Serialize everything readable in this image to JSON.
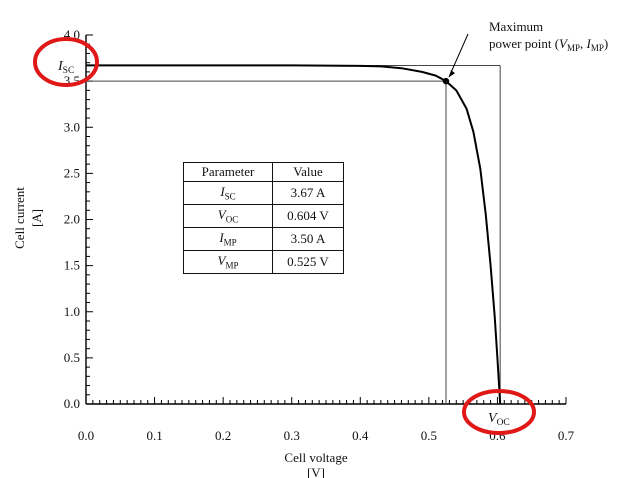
{
  "chart_data": {
    "type": "line",
    "xlabel": "Cell voltage",
    "xlabel_unit": "[V]",
    "ylabel": "Cell current",
    "ylabel_unit": "[A]",
    "xlim": [
      0.0,
      0.7
    ],
    "ylim": [
      0.0,
      4.0
    ],
    "x_ticks": [
      "0.0",
      "0.1",
      "0.2",
      "0.3",
      "0.4",
      "0.5",
      "0.6",
      "0.7"
    ],
    "y_ticks": [
      "0.0",
      "0.5",
      "1.0",
      "1.5",
      "2.0",
      "2.5",
      "3.0",
      "3.5",
      "4.0"
    ],
    "grid": false,
    "series": [
      {
        "x": [
          0.0,
          0.3,
          0.4,
          0.43,
          0.46,
          0.49,
          0.51,
          0.525,
          0.54,
          0.555,
          0.565,
          0.575,
          0.583,
          0.59,
          0.596,
          0.6,
          0.604
        ],
        "y": [
          3.67,
          3.67,
          3.665,
          3.66,
          3.64,
          3.6,
          3.56,
          3.5,
          3.4,
          3.2,
          2.95,
          2.55,
          2.05,
          1.5,
          0.95,
          0.5,
          0.0
        ]
      }
    ],
    "y_marker_label": {
      "base": "I",
      "sub": "SC"
    },
    "x_marker_label": {
      "base": "V",
      "sub": "OC"
    },
    "annotation": {
      "line1": "Maximum",
      "line2_pre": "power point (",
      "v_base": "V",
      "v_sub": "MP",
      "sep": ", ",
      "i_base": "I",
      "i_sub": "MP",
      "line2_post": ")"
    },
    "values": {
      "isc": 3.67,
      "voc": 0.604,
      "imp": 3.5,
      "vmp": 0.525
    },
    "circle_color": "#e01818",
    "line_color": "#000000"
  },
  "table": {
    "headers": [
      "Parameter",
      "Value"
    ],
    "rows": [
      {
        "base": "I",
        "sub": "SC",
        "value": "3.67 A"
      },
      {
        "base": "V",
        "sub": "OC",
        "value": "0.604 V"
      },
      {
        "base": "I",
        "sub": "MP",
        "value": "3.50 A"
      },
      {
        "base": "V",
        "sub": "MP",
        "value": "0.525 V"
      }
    ]
  }
}
